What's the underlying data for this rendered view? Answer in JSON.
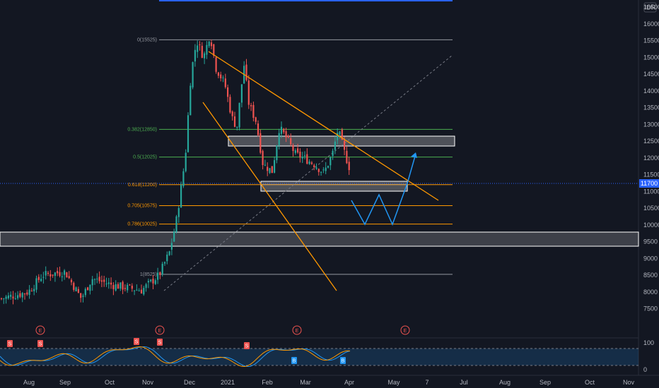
{
  "currency": "IDR",
  "price_axis": {
    "ticks": [
      16500,
      16000,
      15500,
      15000,
      14500,
      14000,
      13500,
      13000,
      12500,
      12000,
      11500,
      11000,
      10500,
      10000,
      9500,
      9000,
      8500,
      8000,
      7500
    ],
    "current_price": "11700",
    "current_price_color": "#2962ff"
  },
  "time_axis": {
    "labels": [
      "Aug",
      "Sep",
      "Oct",
      "Nov",
      "Dec",
      "2021",
      "Feb",
      "Mar",
      "Apr",
      "May",
      "7",
      "Jul",
      "Aug",
      "Sep",
      "Oct",
      "Nov"
    ]
  },
  "fib_levels": [
    {
      "label": "0(15525)",
      "value": 15525,
      "color": "#9598a1"
    },
    {
      "label": "0.382(12850)",
      "value": 12850,
      "color": "#4caf50"
    },
    {
      "label": "0.5(12025)",
      "value": 12025,
      "color": "#4caf50"
    },
    {
      "label": "0.618(11200)",
      "value": 11200,
      "color": "#ff9800"
    },
    {
      "label": "0.705(10575)",
      "value": 10575,
      "color": "#ff9800"
    },
    {
      "label": "0.786(10025)",
      "value": 10025,
      "color": "#ff9800"
    },
    {
      "label": "1(8525)",
      "value": 8525,
      "color": "#9598a1"
    }
  ],
  "event_markers": [
    "E",
    "E",
    "E",
    "E"
  ],
  "oscillator": {
    "ticks": [
      "100",
      "0"
    ],
    "signal_labels": [
      "S",
      "S",
      "S",
      "S",
      "S",
      "B",
      "B"
    ]
  },
  "colors": {
    "bg": "#131722",
    "up": "#26a69a",
    "down": "#ef5350",
    "trend": "#ff9800",
    "projection": "#2196f3"
  }
}
